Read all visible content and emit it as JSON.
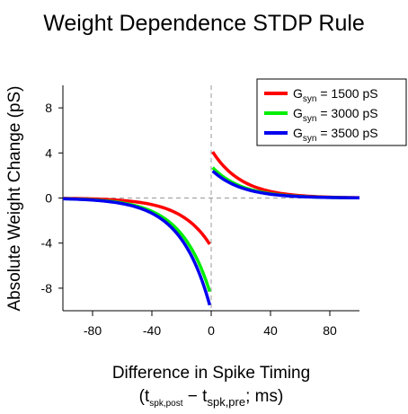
{
  "chart_data": {
    "type": "line",
    "title": "Weight Dependence STDP Rule",
    "xlabel": {
      "line1": "Difference in Spike Timing",
      "line2_prefix": "(t",
      "line2_sub1": "spk,post",
      "line2_mid": " − t",
      "line2_sub2": "spk,pre",
      "line2_suffix": "; ms)"
    },
    "ylabel": "Absolute Weight Change (pS)",
    "xlim": [
      -100,
      100
    ],
    "ylim": [
      -10,
      10
    ],
    "xticks": [
      -80,
      -40,
      0,
      40,
      80
    ],
    "yticks": [
      -8,
      -4,
      0,
      4,
      8
    ],
    "grid": false,
    "reference_lines": {
      "x": 0,
      "y": 0,
      "style": "dashed",
      "color": "#999999"
    },
    "legend": {
      "position": "top-right"
    },
    "series": [
      {
        "name_main": "G",
        "name_sub": "syn",
        "name_rest": " = 1500 pS",
        "color": "#ff0000",
        "pre": {
          "x_start": -100,
          "x_end": -1,
          "amplitude": -4.1,
          "tau": 20
        },
        "post": {
          "x_start": 1,
          "x_end": 100,
          "amplitude": 4.1,
          "tau": 20
        }
      },
      {
        "name_main": "G",
        "name_sub": "syn",
        "name_rest": " = 3000 pS",
        "color": "#00ee00",
        "pre": {
          "x_start": -100,
          "x_end": -1,
          "amplitude": -8.3,
          "tau": 20
        },
        "post": {
          "x_start": 1,
          "x_end": 100,
          "amplitude": 2.7,
          "tau": 20
        }
      },
      {
        "name_main": "G",
        "name_sub": "syn",
        "name_rest": " = 3500 pS",
        "color": "#0000ee",
        "pre": {
          "x_start": -100,
          "x_end": -1,
          "amplitude": -9.5,
          "tau": 20
        },
        "post": {
          "x_start": 1,
          "x_end": 100,
          "amplitude": 2.4,
          "tau": 20
        }
      }
    ]
  }
}
